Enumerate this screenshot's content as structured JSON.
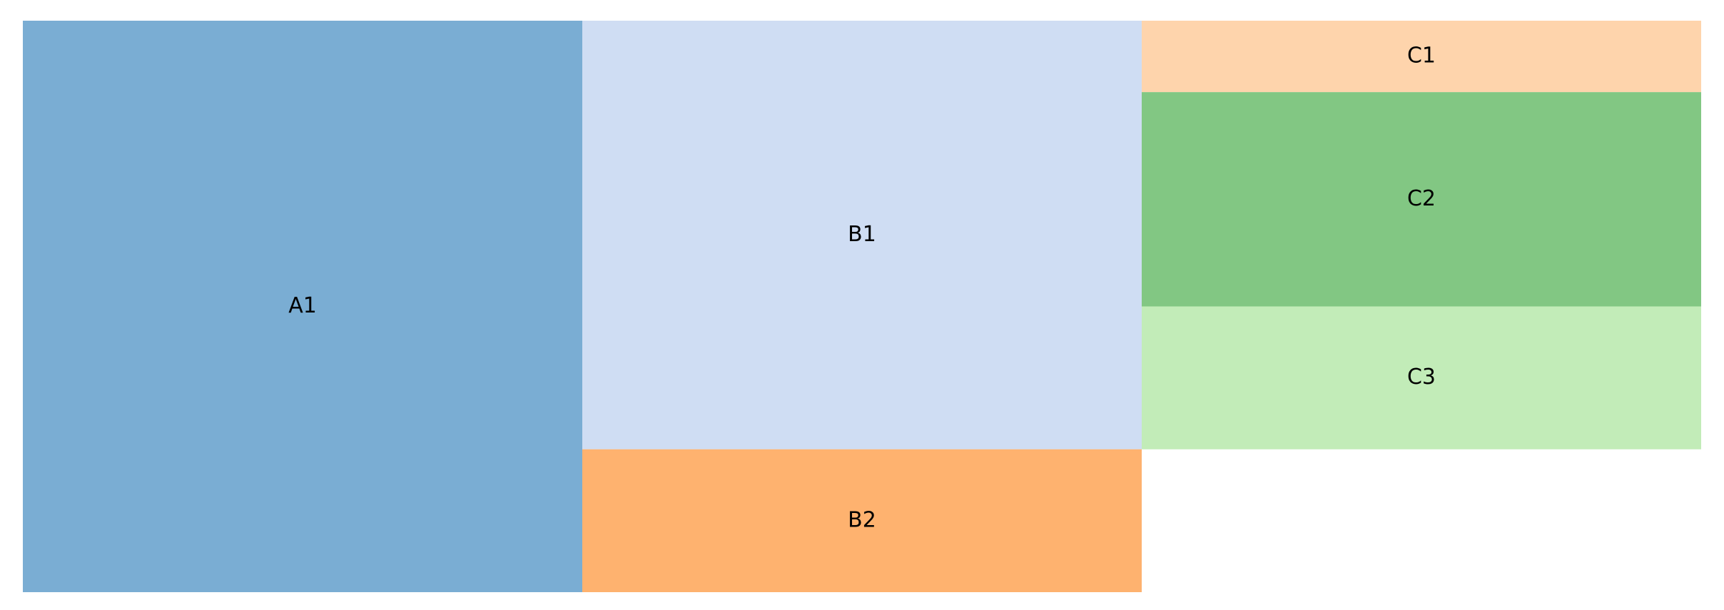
{
  "chart_data": {
    "type": "treemap",
    "columns": [
      {
        "cells": [
          {
            "label": "A1",
            "value": 4,
            "color": "#7aadd3"
          }
        ]
      },
      {
        "cells": [
          {
            "label": "B1",
            "value": 3,
            "color": "#cfddf3"
          },
          {
            "label": "B2",
            "value": 1,
            "color": "#feb26f"
          }
        ]
      },
      {
        "cells": [
          {
            "label": "C1",
            "value": 0.5,
            "color": "#fed4ac"
          },
          {
            "label": "C2",
            "value": 1.5,
            "color": "#82c783"
          },
          {
            "label": "C3",
            "value": 1,
            "color": "#c2ecb8"
          }
        ]
      }
    ],
    "grid": false,
    "legend": "none"
  }
}
